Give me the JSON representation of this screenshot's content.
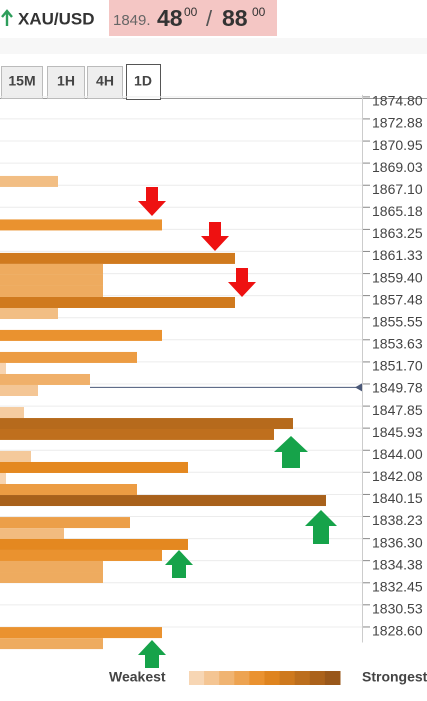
{
  "header": {
    "symbol": "XAU/USD",
    "bid_prefix": "1849.",
    "bid_big": "48",
    "bid_small": "00",
    "separator": "/",
    "ask_big": "88",
    "ask_small": "00"
  },
  "tabs": [
    "15M",
    "1H",
    "4H",
    "1D"
  ],
  "chart_data": {
    "type": "bar",
    "orientation": "horizontal",
    "levels": [
      1867.43,
      1863.64,
      1860.72,
      1859.76,
      1858.8,
      1857.84,
      1856.88,
      1855.92,
      1854.01,
      1852.09,
      1851.13,
      1850.17,
      1849.21,
      1847.29,
      1846.33,
      1845.38,
      1843.46,
      1842.5,
      1841.54,
      1840.58,
      1839.62,
      1837.7,
      1836.74,
      1835.79,
      1834.83,
      1833.87,
      1832.91,
      1828.11,
      1827.15
    ],
    "values": [
      58,
      162,
      235,
      103,
      103,
      103,
      235,
      58,
      162,
      137,
      6,
      90,
      38,
      24,
      293,
      274,
      31,
      188,
      6,
      137,
      326,
      130,
      64,
      188,
      162,
      103,
      103,
      162,
      103
    ],
    "xlim": [
      0,
      360
    ],
    "ylim": [
      1826.2,
      1875.4
    ],
    "yticks": [
      {
        "value": 1874.8,
        "label": "1874.80"
      },
      1872.88,
      1870.95,
      1869.03,
      {
        "value": 1867.1,
        "label": "1867.10"
      },
      1865.18,
      1863.25,
      1861.33,
      {
        "value": 1859.4,
        "label": "1859.40"
      },
      1857.48,
      1855.55,
      1853.63,
      {
        "value": 1851.7,
        "label": "1851.70"
      },
      1849.78,
      1847.85,
      1845.93,
      {
        "value": 1844,
        "label": "1844.00"
      },
      1842.08,
      1840.15,
      1838.23,
      {
        "value": 1836.3,
        "label": "1836.30"
      },
      1834.38,
      1832.45,
      1830.53,
      {
        "value": 1828.6,
        "label": "1828.60"
      }
    ],
    "current_price": 1849.48,
    "grid": true,
    "color_scale": [
      "#f7d6b4",
      "#e88a20",
      "#99571a"
    ],
    "legend": {
      "weak": "Weakest",
      "strong": "Strongest"
    }
  }
}
